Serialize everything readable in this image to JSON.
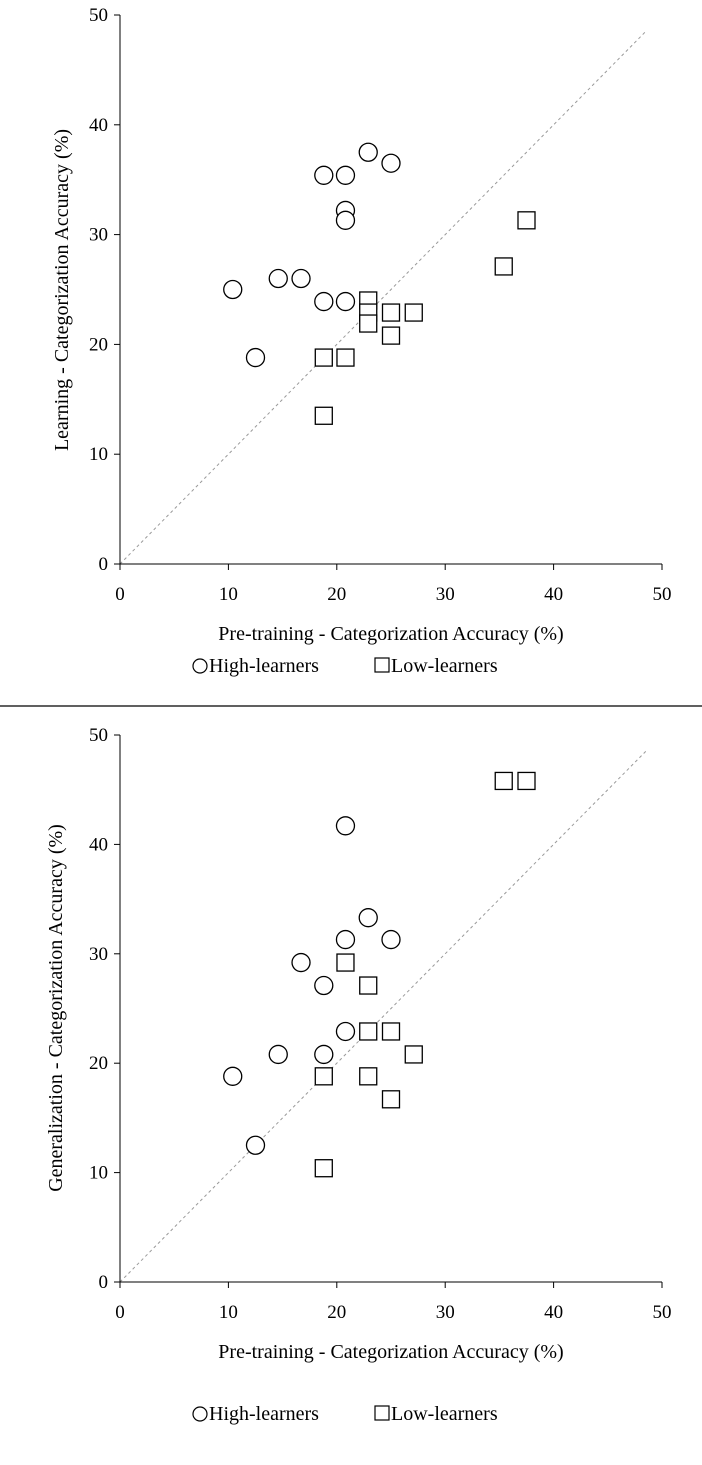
{
  "chart_data": [
    {
      "type": "scatter",
      "xlabel": "Pre-training - Categorization Accuracy (%)",
      "ylabel": "Learning - Categorization Accuracy (%)",
      "xlim": [
        0,
        50
      ],
      "ylim": [
        0,
        50
      ],
      "x_ticks": [
        "0",
        "10",
        "20",
        "30",
        "40",
        "50"
      ],
      "y_ticks": [
        "0",
        "10",
        "20",
        "30",
        "40",
        "50"
      ],
      "reference_line": "y = x (dashed)",
      "legend": [
        "High-learners",
        "Low-learners"
      ],
      "legend_position": "bottom-center",
      "grid": false,
      "series": [
        {
          "name": "High-learners",
          "marker": "circle",
          "points": [
            [
              10.4,
              25.0
            ],
            [
              12.5,
              18.8
            ],
            [
              14.6,
              26.0
            ],
            [
              16.7,
              26.0
            ],
            [
              18.8,
              35.4
            ],
            [
              18.8,
              23.9
            ],
            [
              20.8,
              35.4
            ],
            [
              20.8,
              32.2
            ],
            [
              20.8,
              31.3
            ],
            [
              20.8,
              23.9
            ],
            [
              22.9,
              37.5
            ],
            [
              25.0,
              36.5
            ]
          ]
        },
        {
          "name": "Low-learners",
          "marker": "square",
          "points": [
            [
              18.8,
              18.8
            ],
            [
              18.8,
              13.5
            ],
            [
              20.8,
              18.8
            ],
            [
              22.9,
              24.0
            ],
            [
              22.9,
              22.9
            ],
            [
              22.9,
              21.9
            ],
            [
              25.0,
              22.9
            ],
            [
              25.0,
              20.8
            ],
            [
              27.1,
              22.9
            ],
            [
              35.4,
              27.1
            ],
            [
              37.5,
              31.3
            ]
          ]
        }
      ]
    },
    {
      "type": "scatter",
      "xlabel": "Pre-training - Categorization Accuracy (%)",
      "ylabel": "Generalization - Categorization Accuracy (%)",
      "xlim": [
        0,
        50
      ],
      "ylim": [
        0,
        50
      ],
      "x_ticks": [
        "0",
        "10",
        "20",
        "30",
        "40",
        "50"
      ],
      "y_ticks": [
        "0",
        "10",
        "20",
        "30",
        "40",
        "50"
      ],
      "reference_line": "y = x (dashed)",
      "legend": [
        "High-learners",
        "Low-learners"
      ],
      "legend_position": "bottom-center",
      "grid": false,
      "series": [
        {
          "name": "High-learners",
          "marker": "circle",
          "points": [
            [
              10.4,
              18.8
            ],
            [
              12.5,
              12.5
            ],
            [
              14.6,
              20.8
            ],
            [
              16.7,
              29.2
            ],
            [
              18.8,
              27.1
            ],
            [
              18.8,
              20.8
            ],
            [
              20.8,
              41.7
            ],
            [
              20.8,
              31.3
            ],
            [
              20.8,
              22.9
            ],
            [
              22.9,
              33.3
            ],
            [
              25.0,
              31.3
            ]
          ]
        },
        {
          "name": "Low-learners",
          "marker": "square",
          "points": [
            [
              18.8,
              18.8
            ],
            [
              18.8,
              10.4
            ],
            [
              20.8,
              29.2
            ],
            [
              22.9,
              27.1
            ],
            [
              22.9,
              22.9
            ],
            [
              22.9,
              18.8
            ],
            [
              25.0,
              22.9
            ],
            [
              25.0,
              16.7
            ],
            [
              27.1,
              20.8
            ],
            [
              35.4,
              45.8
            ],
            [
              37.5,
              45.8
            ]
          ]
        }
      ]
    }
  ]
}
